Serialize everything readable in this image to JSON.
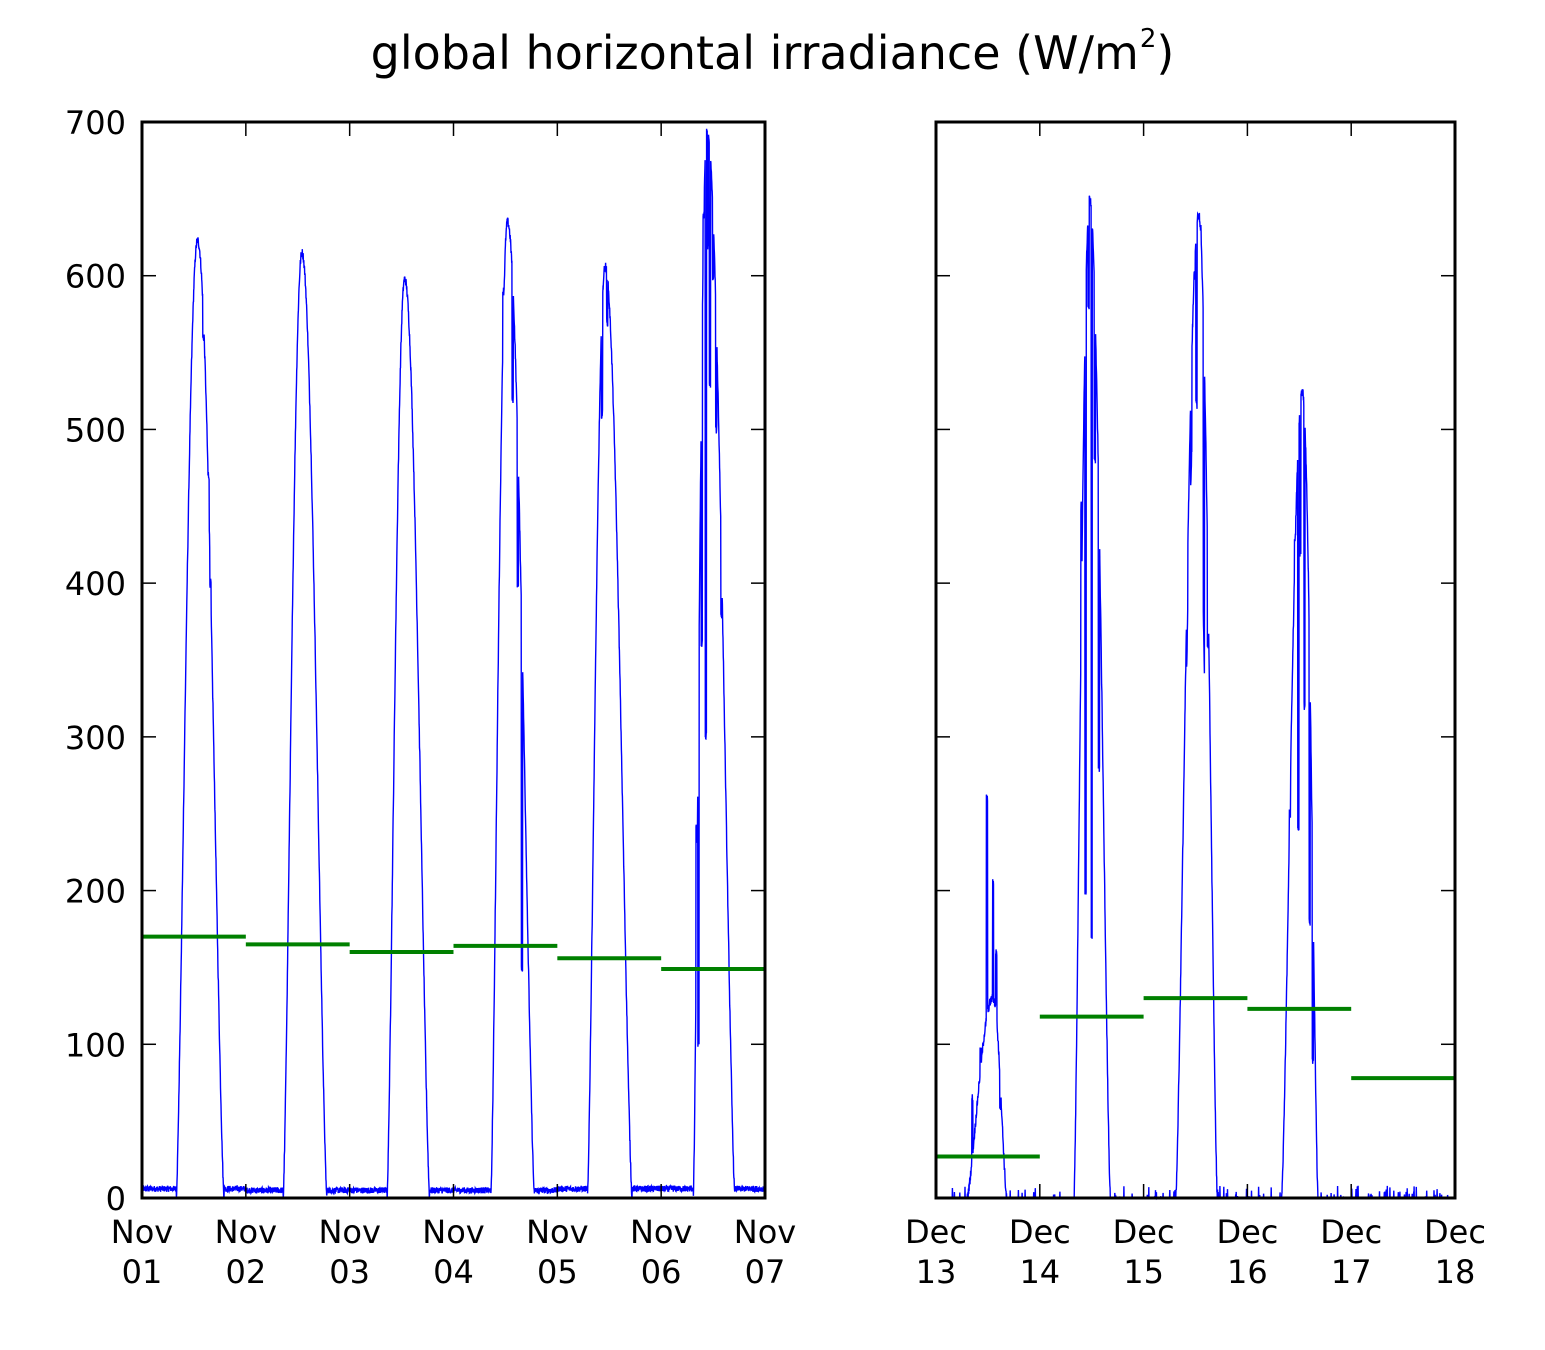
{
  "title": {
    "text": "global horizontal irradiance (W/m",
    "superscript": "2",
    "suffix": ")"
  },
  "colors": {
    "irradiance_line": "#0000ff",
    "daily_mean": "#008000",
    "axes": "#000000"
  },
  "chart_data": [
    {
      "type": "line",
      "xlabel": "",
      "ylabel": "",
      "x_range_days": [
        0,
        6
      ],
      "ylim": [
        0,
        700
      ],
      "yticks": [
        0,
        100,
        200,
        300,
        400,
        500,
        600,
        700
      ],
      "ytick_labels_visible": true,
      "grid": false,
      "xtick_labels": [
        [
          "Nov",
          "01"
        ],
        [
          "Nov",
          "02"
        ],
        [
          "Nov",
          "03"
        ],
        [
          "Nov",
          "04"
        ],
        [
          "Nov",
          "05"
        ],
        [
          "Nov",
          "06"
        ],
        [
          "Nov",
          "07"
        ]
      ],
      "series": [
        {
          "kind": "irradiance",
          "days": [
            {
              "rise": 0.33,
              "set": 0.79,
              "noon": 0.535,
              "peak": 623,
              "night": 6,
              "dips": [
                [
                  0.59,
                  560
                ],
                [
                  0.64,
                  470
                ],
                [
                  0.66,
                  400
                ]
              ]
            },
            {
              "rise": 1.36,
              "set": 1.78,
              "noon": 1.54,
              "peak": 615,
              "night": 5,
              "dips": []
            },
            {
              "rise": 2.36,
              "set": 2.77,
              "noon": 2.53,
              "peak": 598,
              "night": 5,
              "dips": []
            },
            {
              "rise": 3.36,
              "set": 3.78,
              "noon": 3.52,
              "peak": 635,
              "night": 5,
              "dips": [
                [
                  3.48,
                  590
                ],
                [
                  3.57,
                  520
                ],
                [
                  3.62,
                  400
                ],
                [
                  3.66,
                  150
                ]
              ]
            },
            {
              "rise": 4.29,
              "set": 4.72,
              "noon": 4.46,
              "peak": 606,
              "night": 6,
              "dips": [
                [
                  4.43,
                  510
                ],
                [
                  4.48,
                  570
                ]
              ]
            },
            {
              "rise": 5.31,
              "set": 5.71,
              "noon": 5.44,
              "peak": 695,
              "night": 6,
              "dips": [
                [
                  5.34,
                  240
                ],
                [
                  5.36,
                  100
                ],
                [
                  5.39,
                  360
                ],
                [
                  5.41,
                  640
                ],
                [
                  5.43,
                  300
                ],
                [
                  5.45,
                  620
                ],
                [
                  5.47,
                  530
                ],
                [
                  5.5,
                  600
                ],
                [
                  5.53,
                  500
                ],
                [
                  5.58,
                  380
                ]
              ]
            }
          ]
        },
        {
          "kind": "daily_mean",
          "values": [
            170,
            165,
            160,
            164,
            156,
            149
          ]
        }
      ]
    },
    {
      "type": "line",
      "xlabel": "",
      "ylabel": "",
      "x_range_days": [
        0,
        5
      ],
      "ylim": [
        0,
        700
      ],
      "yticks": [
        0,
        100,
        200,
        300,
        400,
        500,
        600,
        700
      ],
      "ytick_labels_visible": false,
      "grid": false,
      "xtick_labels": [
        [
          "Dec",
          "13"
        ],
        [
          "Dec",
          "14"
        ],
        [
          "Dec",
          "15"
        ],
        [
          "Dec",
          "16"
        ],
        [
          "Dec",
          "17"
        ],
        [
          "Dec",
          "18"
        ]
      ],
      "series": [
        {
          "kind": "irradiance",
          "days": [
            {
              "rise": 0.3,
              "set": 0.68,
              "noon": 0.55,
              "peak": 130,
              "night": 0,
              "dips": [
                [
                  0.35,
                  65
                ],
                [
                  0.43,
                  95
                ],
                [
                  0.49,
                  260
                ],
                [
                  0.55,
                  205
                ],
                [
                  0.58,
                  160
                ],
                [
                  0.62,
                  60
                ]
              ]
            },
            {
              "rise": 1.33,
              "set": 1.68,
              "noon": 1.48,
              "peak": 650,
              "night": 0,
              "dips": [
                [
                  1.4,
                  450
                ],
                [
                  1.44,
                  200
                ],
                [
                  1.47,
                  580
                ],
                [
                  1.5,
                  170
                ],
                [
                  1.53,
                  480
                ],
                [
                  1.57,
                  280
                ]
              ]
            },
            {
              "rise": 2.31,
              "set": 2.71,
              "noon": 2.53,
              "peak": 640,
              "night": 0,
              "dips": [
                [
                  2.42,
                  320
                ],
                [
                  2.46,
                  115
                ],
                [
                  2.49,
                  600
                ],
                [
                  2.51,
                  210
                ],
                [
                  2.55,
                  630
                ],
                [
                  2.58,
                  310
                ],
                [
                  2.62,
                  360
                ]
              ]
            },
            {
              "rise": 2.32,
              "set": 2.68,
              "noon": 2.5,
              "peak": 520,
              "night": 0,
              "dips": []
            },
            {
              "rise": 3.33,
              "set": 3.68,
              "noon": 3.53,
              "peak": 525,
              "night": 0,
              "dips": [
                [
                  3.41,
                  250
                ],
                [
                  3.46,
                  430
                ],
                [
                  3.49,
                  240
                ],
                [
                  3.51,
                  420
                ],
                [
                  3.55,
                  320
                ],
                [
                  3.6,
                  180
                ],
                [
                  3.63,
                  90
                ]
              ]
            }
          ]
        },
        {
          "kind": "daily_mean",
          "values": [
            27,
            118,
            130,
            123,
            78
          ]
        }
      ]
    }
  ]
}
